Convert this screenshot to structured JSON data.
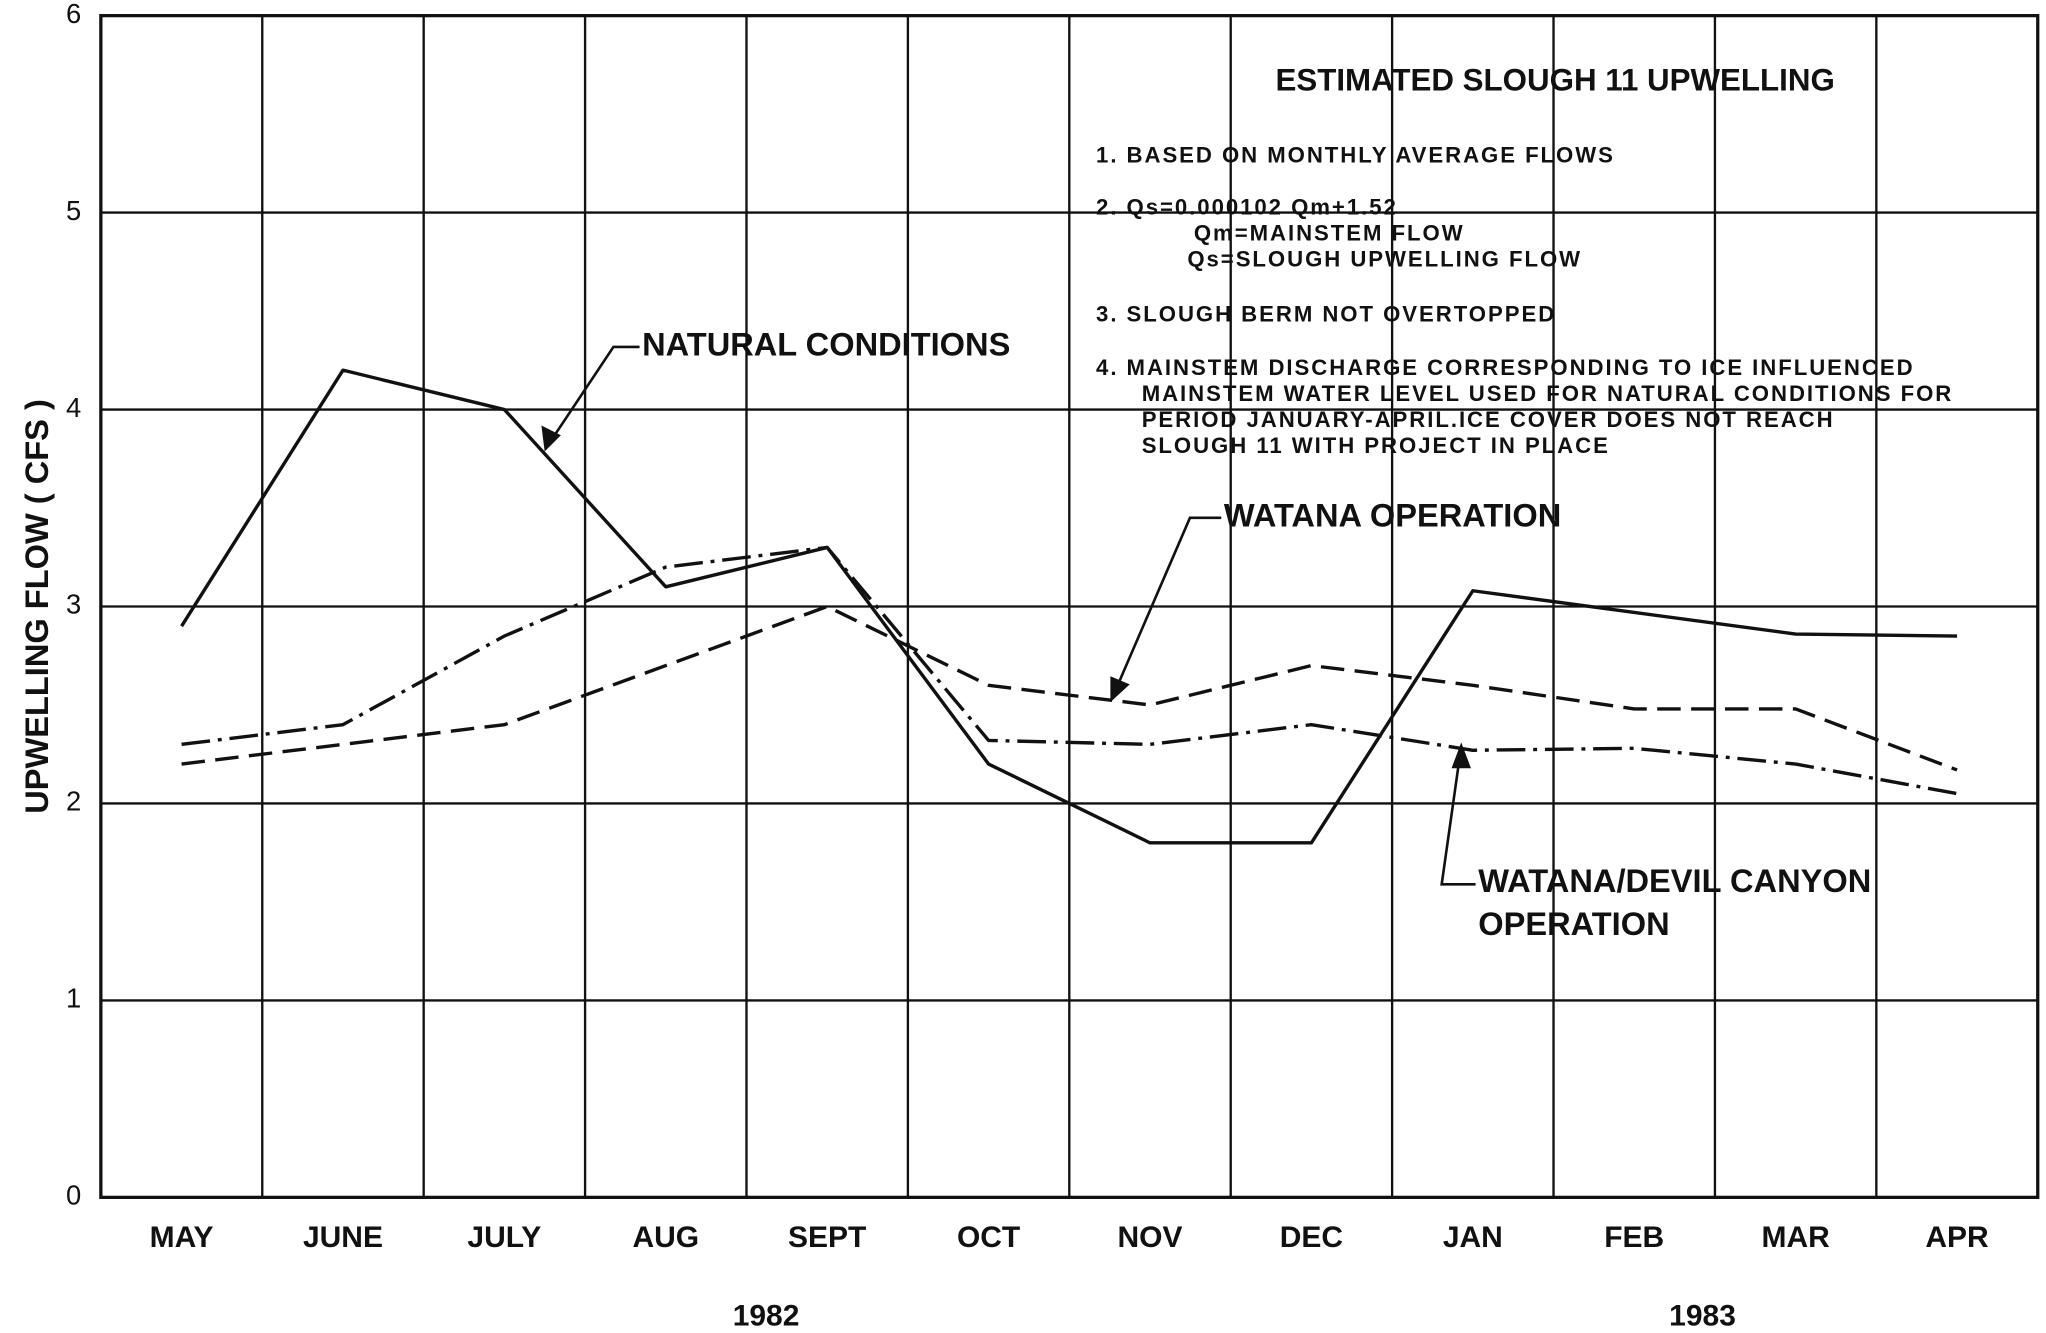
{
  "chart_data": {
    "type": "line",
    "title": "ESTIMATED SLOUGH 11 UPWELLING",
    "notes": [
      [
        "1. BASED ON MONTHLY AVERAGE FLOWS"
      ],
      [
        "2. Qs=0.000102 Qm+1.52",
        "Qm=MAINSTEM FLOW",
        "Qs=SLOUGH UPWELLING FLOW"
      ],
      [
        "3. SLOUGH BERM NOT OVERTOPPED"
      ],
      [
        "4. MAINSTEM DISCHARGE CORRESPONDING TO ICE INFLUENCED",
        "MAINSTEM WATER LEVEL USED FOR NATURAL CONDITIONS FOR",
        "PERIOD JANUARY-APRIL.ICE COVER DOES NOT REACH",
        "SLOUGH 11 WITH PROJECT IN PLACE"
      ]
    ],
    "y_label": "UPWELLING FLOW ( CFS )",
    "categories": [
      "MAY",
      "JUNE",
      "JULY",
      "AUG",
      "SEPT",
      "OCT",
      "NOV",
      "DEC",
      "JAN",
      "FEB",
      "MAR",
      "APR"
    ],
    "year_labels": [
      "1982",
      "1983"
    ],
    "series": [
      {
        "name": "NATURAL CONDITIONS",
        "color": "#111111",
        "style": "solid",
        "values": [
          2.9,
          4.2,
          4.0,
          3.1,
          3.3,
          2.2,
          1.8,
          1.8,
          3.08,
          2.97,
          2.86,
          2.85
        ]
      },
      {
        "name": "WATANA OPERATION",
        "color": "#111111",
        "style": "dashed",
        "values": [
          2.2,
          2.3,
          2.4,
          2.7,
          3.0,
          2.6,
          2.5,
          2.7,
          2.6,
          2.48,
          2.48,
          2.17
        ]
      },
      {
        "name": "WATANA/DEVIL CANYON OPERATION",
        "color": "#111111",
        "style": "dashdot",
        "values": [
          2.3,
          2.4,
          2.85,
          3.2,
          3.3,
          2.32,
          2.3,
          2.4,
          2.27,
          2.28,
          2.2,
          2.05
        ]
      }
    ],
    "ylim": [
      0,
      6
    ],
    "yticks": [
      0,
      1,
      2,
      3,
      4,
      5,
      6
    ],
    "grid": true
  }
}
